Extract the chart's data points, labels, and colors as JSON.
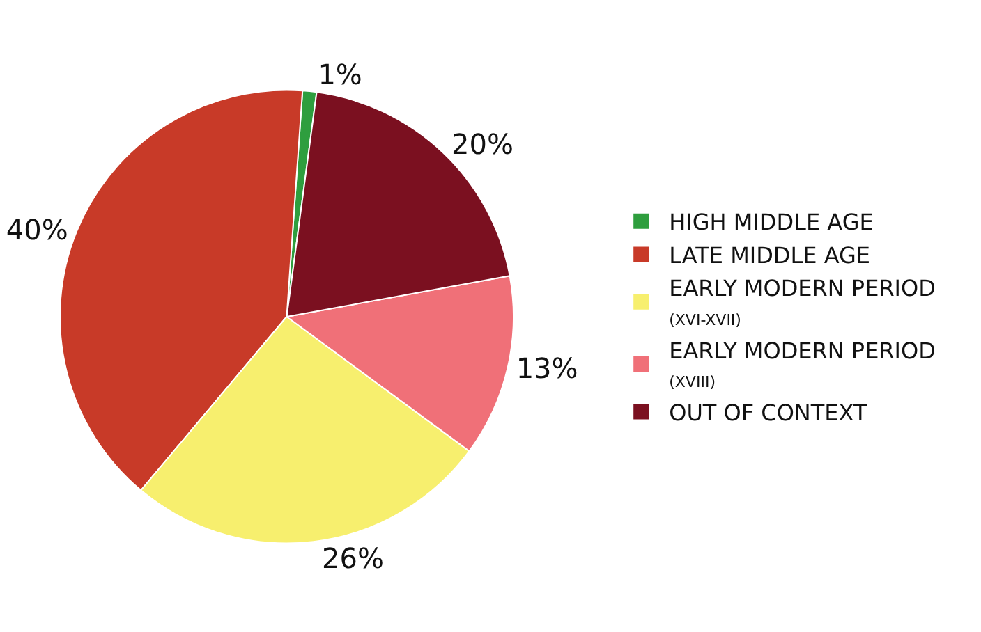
{
  "chart_data": {
    "type": "pie",
    "categories": [
      "HIGH MIDDLE AGE",
      "LATE MIDDLE AGE",
      "EARLY MODERN PERIOD\n(XVI-XVII)",
      "EARLY MODERN PERIOD\n(XVIII)",
      "OUT OF CONTEXT"
    ],
    "values": [
      1,
      40,
      26,
      13,
      20
    ],
    "value_labels": [
      "1%",
      "40%",
      "26%",
      "13%",
      "20%"
    ],
    "colors": [
      "#2e9e3e",
      "#c83a28",
      "#f7ef6e",
      "#f07078",
      "#7b1020"
    ],
    "legend": "right"
  }
}
